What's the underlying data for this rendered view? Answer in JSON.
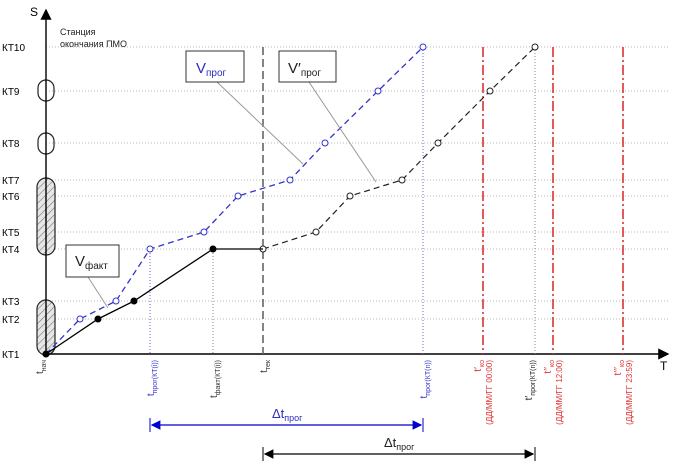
{
  "axes": {
    "y_label": "S",
    "x_label": "T"
  },
  "station_note": [
    "Станция",
    "окончания ПМО"
  ],
  "kt_levels": [
    "КТ1",
    "КТ2",
    "КТ3",
    "КТ4",
    "КТ5",
    "КТ6",
    "КТ7",
    "КТ8",
    "КТ9",
    "КТ10"
  ],
  "series": {
    "fact": {
      "label_main": "V",
      "label_sub": "факт"
    },
    "prog": {
      "label_main": "V",
      "label_sub": "прог"
    },
    "prog2": {
      "label_main": "V′",
      "label_sub": "прог"
    }
  },
  "time_labels": {
    "t_nach": {
      "main": "t",
      "sub": "нач"
    },
    "t_prog_kti": {
      "main": "t",
      "sub": "прог(КТ(i))"
    },
    "t_fakt_kti": {
      "main": "t",
      "sub": "факт(КТ(i))"
    },
    "t_tek": {
      "main": "t",
      "sub": "тек"
    },
    "t_prog_ktn": {
      "main": "t",
      "sub": "прог(КТ(n))"
    },
    "t_prog2_ktn": {
      "main": "t′",
      "sub": "прог(КТ(n))"
    },
    "t_ko1": {
      "main": "t′",
      "sub": "ко",
      "note": "(ДД/ММ/ГГ 00:00)"
    },
    "t_ko2": {
      "main": "t′′",
      "sub": "ко",
      "note": "(ДД/ММ/ГГ 12:00)"
    },
    "t_ko3": {
      "main": "t′′′",
      "sub": "ко",
      "note": "(ДД/ММ/ГГ 23:59)"
    }
  },
  "deltas": {
    "delta_prog": {
      "main": "Δt",
      "sub": "прог"
    },
    "delta_prog2": {
      "main": "Δt",
      "sub": "прог"
    }
  },
  "colors": {
    "fact": "#000000",
    "prog": "#3333cc",
    "prog2": "#333333",
    "deadline": "#e03030",
    "grid": "#b0b0b0"
  }
}
